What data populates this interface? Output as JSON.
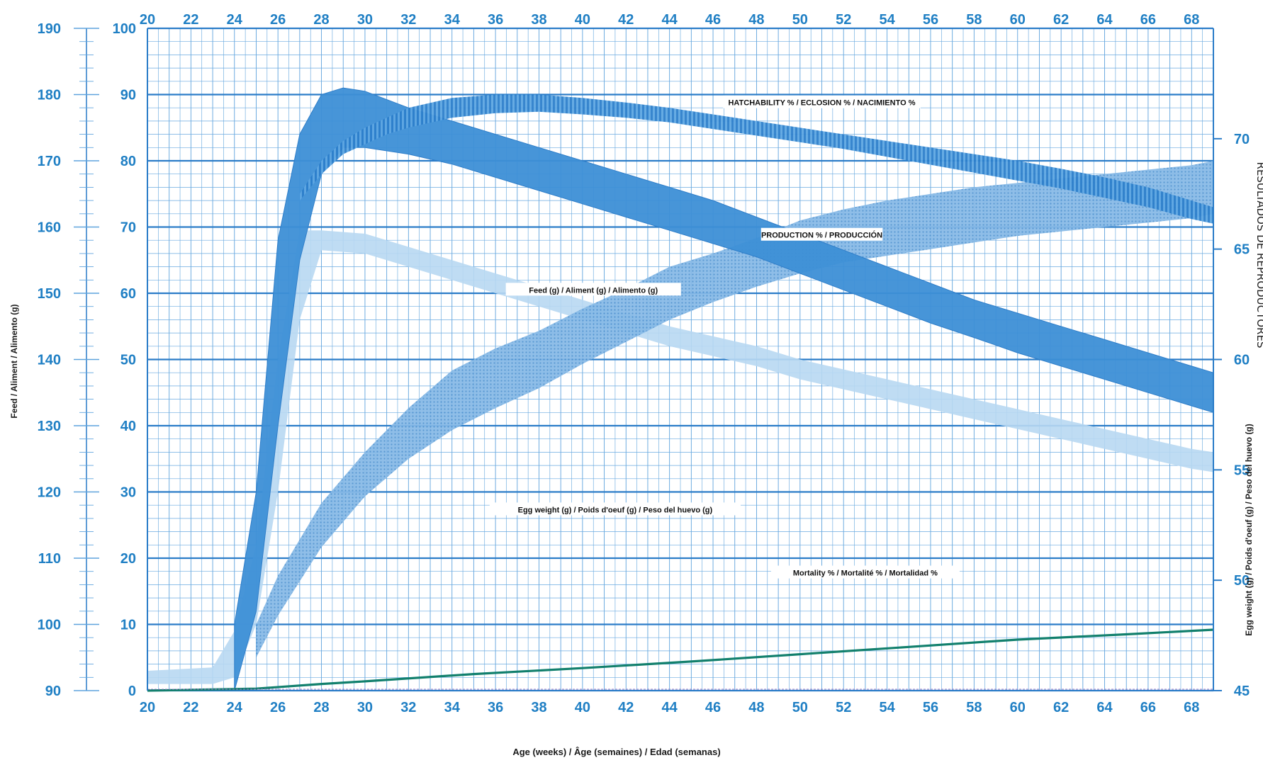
{
  "chart_data": {
    "type": "area",
    "xlabel": "Age (weeks) / Âge (semaines) / Edad (semanas)",
    "x_ticks": [
      20,
      22,
      24,
      26,
      28,
      30,
      32,
      34,
      36,
      38,
      40,
      42,
      44,
      46,
      48,
      50,
      52,
      54,
      56,
      58,
      60,
      62,
      64,
      66,
      68
    ],
    "xlim": [
      20,
      69
    ],
    "axes": {
      "percent": {
        "label": "",
        "ylim": [
          0,
          100
        ],
        "ticks": [
          0,
          10,
          20,
          30,
          40,
          50,
          60,
          70,
          80,
          90,
          100
        ],
        "position": "left-inner"
      },
      "feed": {
        "label": "Feed / Aliment / Alimento (g)",
        "ylim": [
          90,
          190
        ],
        "ticks": [
          90,
          100,
          110,
          120,
          130,
          140,
          150,
          160,
          170,
          180,
          190
        ],
        "position": "left-outer"
      },
      "egg_weight": {
        "label": "Egg weight (g) / Poids d'oeuf (g) / Peso del huevo (g)",
        "ylim": [
          45,
          75
        ],
        "ticks": [
          45,
          50,
          55,
          60,
          65,
          70
        ],
        "position": "right"
      }
    },
    "side_title": "RESULTADOS DE REPRODUCTORES",
    "series": [
      {
        "name": "HATCHABILITY % / ECLOSION % / NACIMIENTO %",
        "axis": "percent",
        "style": "hatched-band",
        "color": "#2e86d1",
        "x": [
          27,
          28,
          29,
          30,
          31,
          32,
          34,
          36,
          38,
          40,
          42,
          44,
          46,
          48,
          50,
          52,
          54,
          56,
          58,
          60,
          62,
          64,
          66,
          68,
          69
        ],
        "upper": [
          75,
          80,
          83,
          85,
          86.5,
          88,
          89.5,
          90,
          90,
          89.5,
          88.8,
          88,
          87,
          86,
          85,
          84,
          83,
          82,
          81,
          80,
          78.8,
          77.5,
          76,
          74,
          73
        ],
        "lower": [
          74,
          78,
          81,
          82.5,
          84,
          85,
          86.5,
          87.2,
          87.4,
          87,
          86.5,
          85.8,
          84.8,
          83.8,
          82.8,
          81.8,
          80.6,
          79.4,
          78.2,
          77,
          75.8,
          74.4,
          73,
          71.2,
          70.5
        ]
      },
      {
        "name": "PRODUCTION % / PRODUCCIÓN",
        "axis": "percent",
        "style": "solid-band",
        "color": "#3d8fd6",
        "x": [
          24,
          25,
          26,
          27,
          28,
          29,
          30,
          32,
          34,
          36,
          38,
          40,
          42,
          44,
          46,
          48,
          50,
          52,
          54,
          56,
          58,
          60,
          62,
          64,
          66,
          68,
          69
        ],
        "upper": [
          10,
          30,
          68,
          84,
          90,
          91,
          90.5,
          88,
          86,
          84,
          82,
          80,
          78,
          76,
          74,
          71.5,
          69,
          66.5,
          64,
          61.5,
          59,
          57,
          55,
          53,
          51,
          49,
          48
        ],
        "lower": [
          0,
          12,
          40,
          65,
          78,
          82,
          82,
          81,
          79.5,
          77.5,
          75.5,
          73.5,
          71.5,
          69.5,
          67.5,
          65.5,
          63,
          60.5,
          58,
          55.5,
          53.3,
          51,
          49,
          47,
          45,
          43,
          42
        ]
      },
      {
        "name": "Feed (g) / Aliment (g) / Alimento (g)",
        "axis": "feed",
        "style": "light-band",
        "color": "#b8d8f2",
        "x": [
          20,
          23,
          24,
          25,
          26,
          27,
          28,
          30,
          32,
          34,
          36,
          38,
          40,
          42,
          44,
          46,
          48,
          50,
          52,
          54,
          56,
          58,
          60,
          62,
          64,
          66,
          68,
          69
        ],
        "upper": [
          93,
          93.5,
          99,
          112,
          140,
          159.5,
          159.5,
          159,
          157,
          155,
          153,
          151,
          149,
          147,
          145,
          143.5,
          142,
          140,
          138.5,
          137,
          135.5,
          134,
          132.5,
          131,
          129.5,
          128,
          126.5,
          126
        ],
        "lower": [
          91,
          91,
          92,
          100,
          120,
          146,
          156.5,
          156,
          154,
          152,
          150,
          148,
          146,
          144,
          142,
          140.5,
          139,
          137,
          135.5,
          134,
          132.5,
          131,
          129.5,
          128,
          126.5,
          125,
          123.5,
          123
        ]
      },
      {
        "name": "Egg weight (g) / Poids d'oeuf (g) / Peso del huevo (g)",
        "axis": "egg_weight",
        "style": "dotted-band",
        "color": "#5e9fd6",
        "x": [
          25,
          26,
          28,
          30,
          32,
          34,
          36,
          38,
          40,
          42,
          44,
          46,
          48,
          50,
          52,
          54,
          56,
          58,
          60,
          62,
          64,
          66,
          68,
          69
        ],
        "upper": [
          48,
          50.2,
          53.5,
          55.8,
          57.8,
          59.5,
          60.5,
          61.3,
          62.3,
          63.2,
          64.2,
          64.8,
          65.5,
          66.3,
          66.8,
          67.2,
          67.5,
          67.8,
          68,
          68.2,
          68.4,
          68.6,
          68.8,
          69
        ],
        "lower": [
          46.5,
          48.4,
          51.5,
          53.8,
          55.5,
          56.8,
          57.8,
          58.7,
          59.8,
          60.8,
          61.8,
          62.6,
          63.3,
          63.9,
          64.4,
          64.7,
          65,
          65.3,
          65.6,
          65.8,
          66,
          66.2,
          66.4,
          66.6
        ]
      },
      {
        "name": "Mortality % / Mortalité % / Mortalidad %",
        "axis": "percent",
        "style": "line",
        "color": "#12806d",
        "x": [
          20,
          25,
          28,
          30,
          35,
          40,
          45,
          50,
          55,
          60,
          65,
          69
        ],
        "values": [
          0,
          0.3,
          1,
          1.4,
          2.5,
          3.4,
          4.4,
          5.5,
          6.6,
          7.7,
          8.5,
          9.2
        ]
      }
    ],
    "grid": true
  }
}
